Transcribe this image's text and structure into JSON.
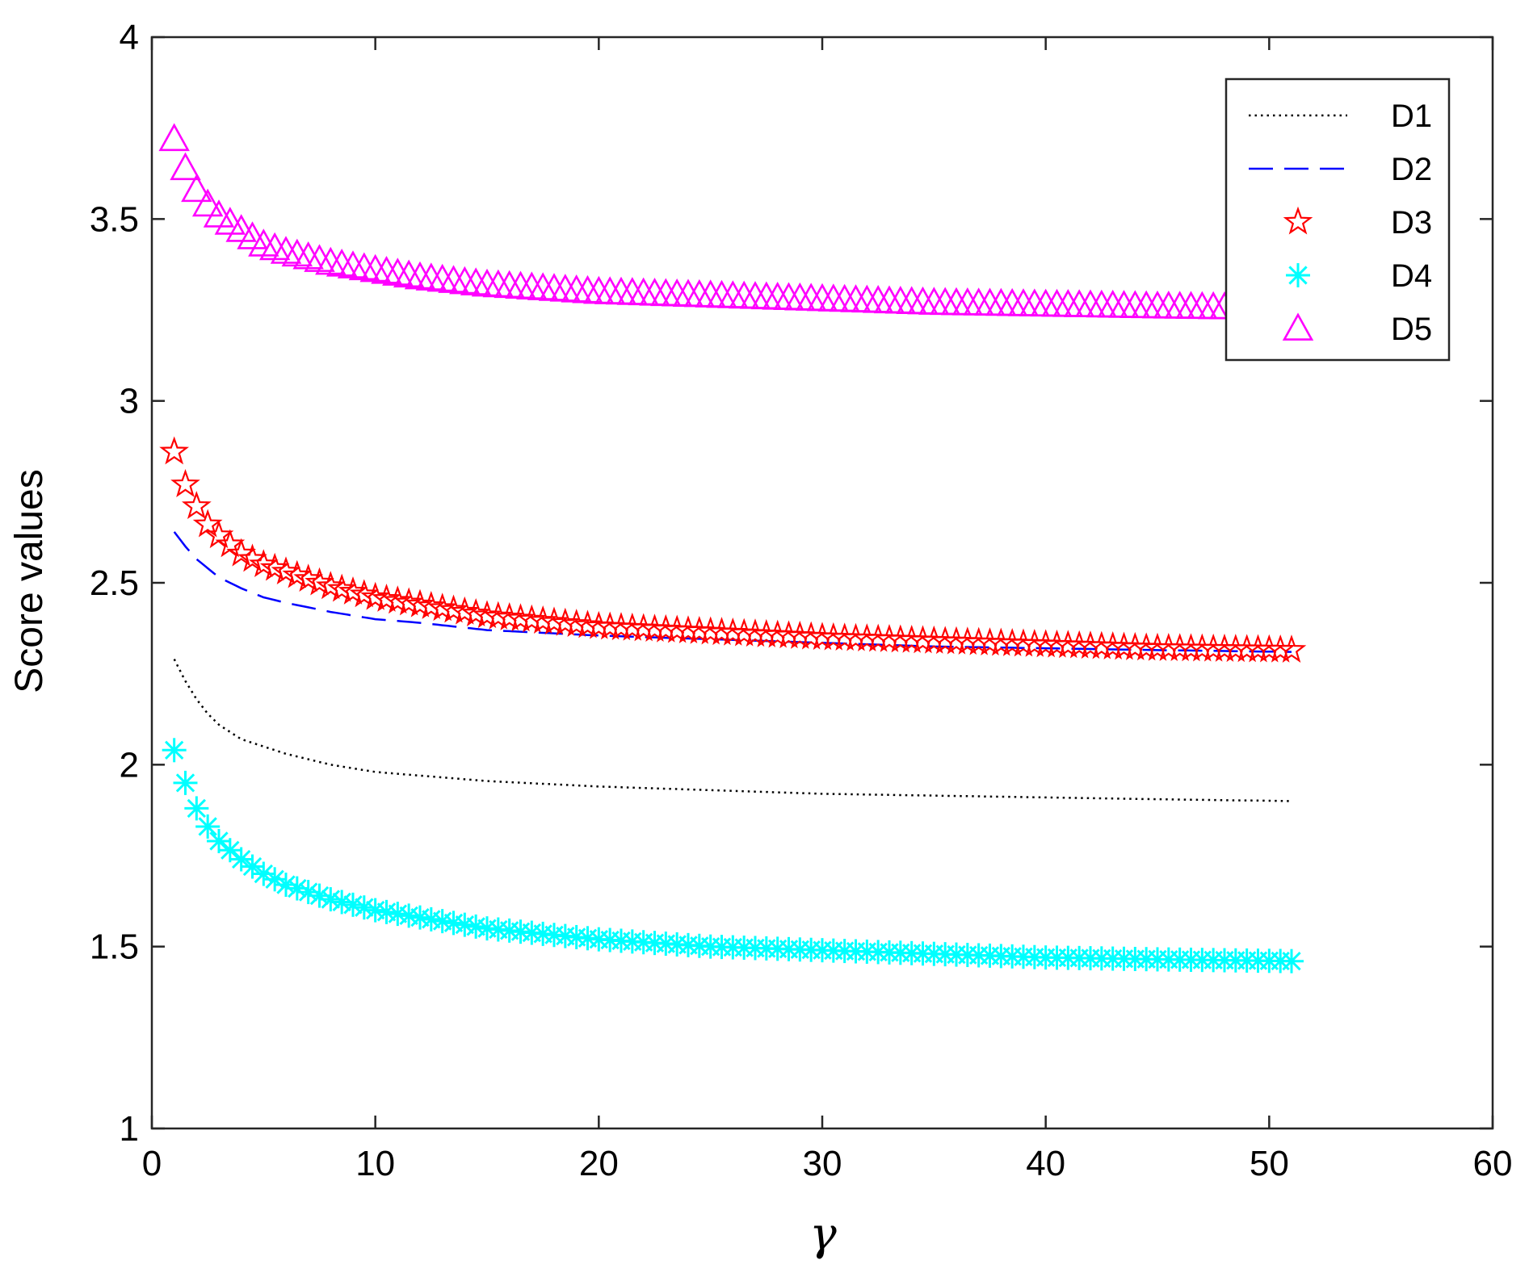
{
  "chart_data": {
    "type": "line",
    "title": "",
    "xlabel": "γ",
    "ylabel": "Score values",
    "xlim": [
      0,
      60
    ],
    "ylim": [
      1,
      4
    ],
    "xticks": [
      "0",
      "10",
      "20",
      "30",
      "40",
      "50",
      "60"
    ],
    "yticks": [
      "1",
      "1.5",
      "2",
      "2.5",
      "3",
      "3.5",
      "4"
    ],
    "grid": false,
    "legend_position": "top-right",
    "x": [
      1,
      1.5,
      2,
      2.5,
      3,
      4,
      5,
      6,
      8,
      10,
      12,
      15,
      20,
      25,
      30,
      35,
      40,
      45,
      51
    ],
    "series": [
      {
        "name": "D1",
        "color": "#000000",
        "line_style": "dotted",
        "marker": "none",
        "values": [
          2.29,
          2.23,
          2.18,
          2.14,
          2.11,
          2.07,
          2.05,
          2.03,
          2.0,
          1.98,
          1.97,
          1.955,
          1.94,
          1.93,
          1.92,
          1.915,
          1.91,
          1.905,
          1.9
        ]
      },
      {
        "name": "D2",
        "color": "#0000ff",
        "line_style": "dashed",
        "marker": "none",
        "values": [
          2.64,
          2.6,
          2.565,
          2.54,
          2.515,
          2.485,
          2.46,
          2.445,
          2.42,
          2.4,
          2.39,
          2.37,
          2.355,
          2.345,
          2.335,
          2.325,
          2.32,
          2.315,
          2.31
        ]
      },
      {
        "name": "D3",
        "color": "#ff0000",
        "line_style": "none",
        "marker": "star",
        "values": [
          2.86,
          2.77,
          2.71,
          2.66,
          2.63,
          2.58,
          2.55,
          2.53,
          2.49,
          2.46,
          2.44,
          2.41,
          2.38,
          2.365,
          2.35,
          2.34,
          2.33,
          2.32,
          2.315
        ]
      },
      {
        "name": "D4",
        "color": "#00ffff",
        "line_style": "none",
        "marker": "asterisk",
        "values": [
          2.04,
          1.95,
          1.88,
          1.83,
          1.79,
          1.74,
          1.7,
          1.67,
          1.63,
          1.6,
          1.58,
          1.55,
          1.52,
          1.5,
          1.49,
          1.48,
          1.47,
          1.465,
          1.46
        ]
      },
      {
        "name": "D5",
        "color": "#ff00ff",
        "line_style": "none",
        "marker": "triangle",
        "values": [
          3.72,
          3.64,
          3.58,
          3.54,
          3.51,
          3.47,
          3.43,
          3.41,
          3.38,
          3.36,
          3.34,
          3.32,
          3.3,
          3.29,
          3.28,
          3.27,
          3.265,
          3.26,
          3.255
        ]
      }
    ]
  }
}
